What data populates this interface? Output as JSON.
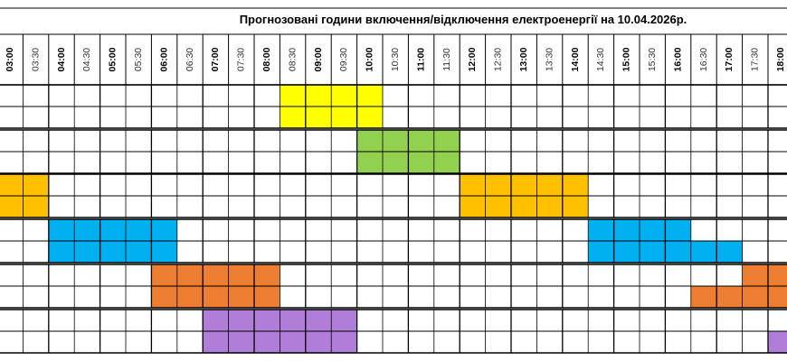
{
  "title": "Прогнозовані години включення/відключення електроенергії на 10.04.2026р.",
  "time_labels": [
    "03:00",
    "03:30",
    "04:00",
    "04:30",
    "05:00",
    "05:30",
    "06:00",
    "06:30",
    "07:00",
    "07:30",
    "08:00",
    "08:30",
    "09:00",
    "09:30",
    "10:00",
    "10:30",
    "11:00",
    "11:30",
    "12:00",
    "12:30",
    "13:00",
    "13:30",
    "14:00",
    "14:30",
    "15:00",
    "15:30",
    "16:00",
    "16:30",
    "17:00",
    "17:30",
    "18:00"
  ],
  "colors": {
    "grid": "#000000",
    "header_text": "#000000",
    "minor_header_text": "#333333"
  },
  "groups": [
    {
      "color": "#ffff00",
      "upper": [
        [
          11,
          15
        ]
      ],
      "lower": [
        [
          11,
          15
        ]
      ]
    },
    {
      "color": "#92d050",
      "upper": [
        [
          14,
          18
        ]
      ],
      "lower": [
        [
          14,
          18
        ]
      ]
    },
    {
      "color": "#ffc000",
      "upper": [
        [
          0,
          2
        ],
        [
          18,
          23
        ]
      ],
      "lower": [
        [
          0,
          2
        ],
        [
          18,
          23
        ]
      ]
    },
    {
      "color": "#00b0f0",
      "upper": [
        [
          2,
          7
        ],
        [
          23,
          27
        ]
      ],
      "lower": [
        [
          2,
          7
        ],
        [
          23,
          29
        ]
      ]
    },
    {
      "color": "#ed7d31",
      "upper": [
        [
          6,
          11
        ],
        [
          29,
          31
        ]
      ],
      "lower": [
        [
          6,
          11
        ],
        [
          27,
          31
        ]
      ]
    },
    {
      "color": "#b07ed8",
      "upper": [
        [
          8,
          14
        ]
      ],
      "lower": [
        [
          8,
          14
        ],
        [
          30,
          31
        ]
      ]
    }
  ]
}
